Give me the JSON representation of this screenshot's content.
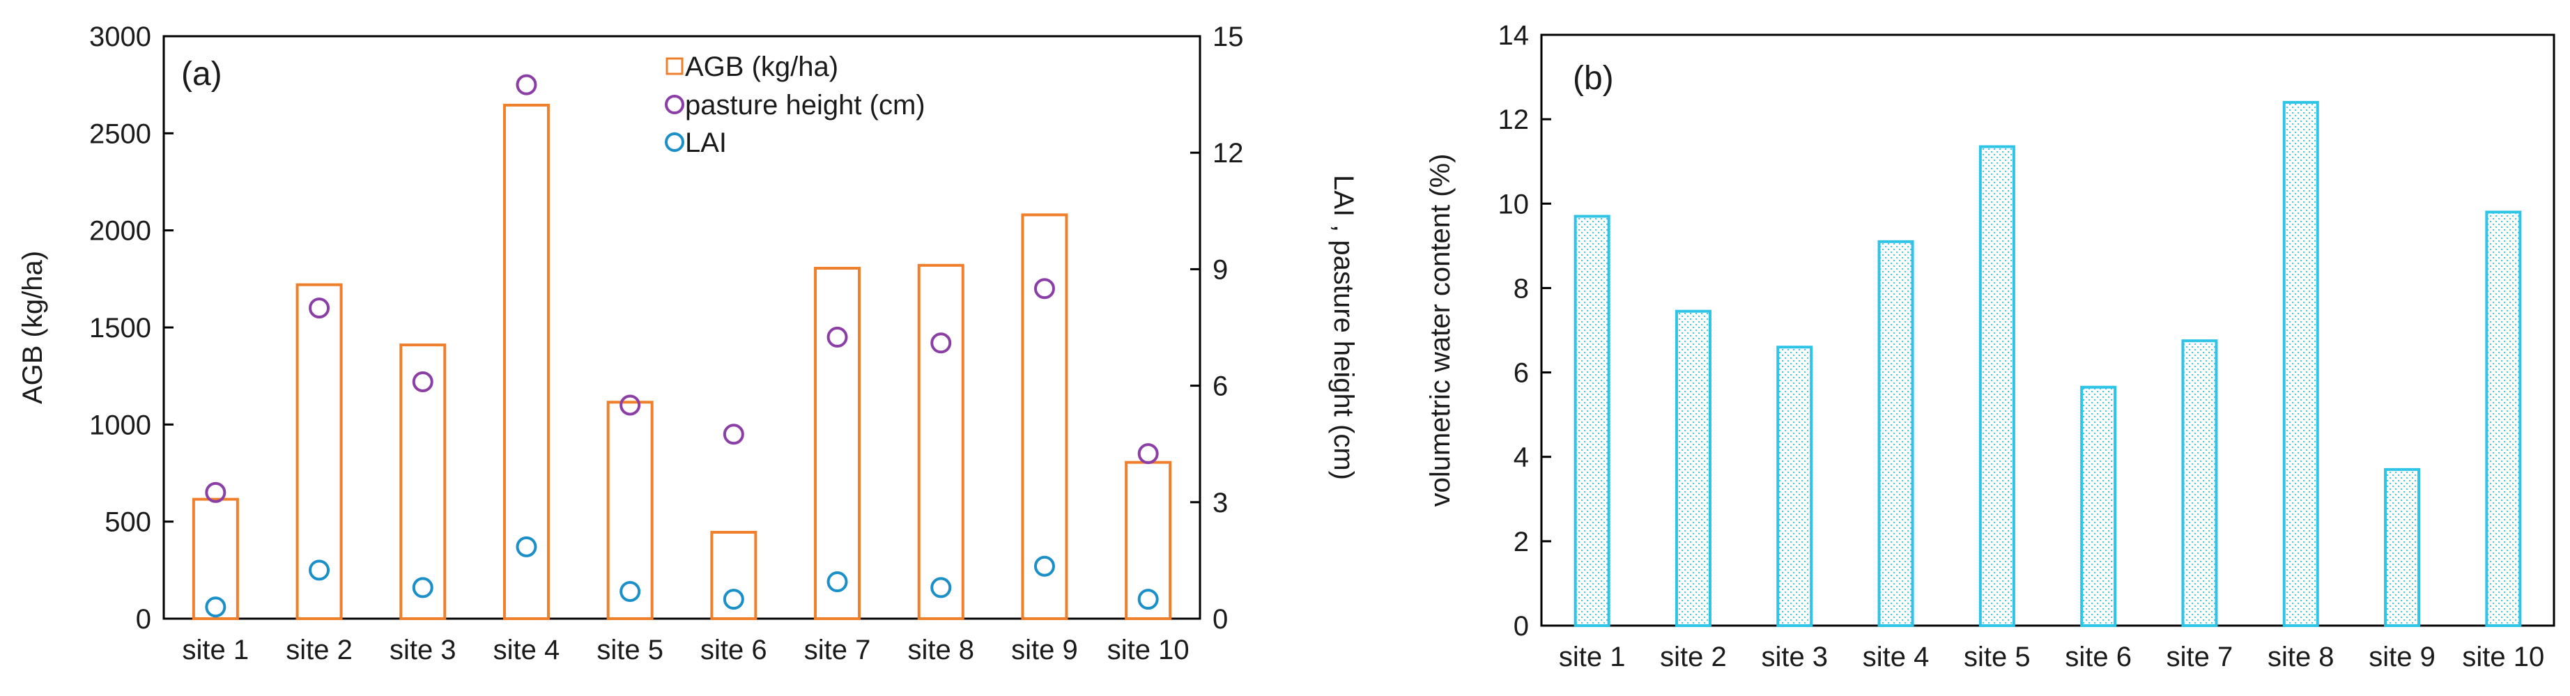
{
  "chart_data": [
    {
      "type": "bar",
      "panel_label": "(a)",
      "categories": [
        "site 1",
        "site 2",
        "site 3",
        "site 4",
        "site 5",
        "site 6",
        "site 7",
        "site 8",
        "site 9",
        "site 10"
      ],
      "series": [
        {
          "name": "AGB (kg/ha)",
          "axis": "left",
          "kind": "bar",
          "color": "#F07F2B",
          "fill": "#ffffff",
          "values": [
            615,
            1720,
            1410,
            2645,
            1115,
            445,
            1805,
            1820,
            2080,
            805
          ]
        },
        {
          "name": "pasture height (cm)",
          "axis": "right",
          "kind": "scatter",
          "color": "#8B3FA6",
          "values": [
            3.25,
            8.0,
            6.1,
            13.75,
            5.5,
            4.75,
            7.25,
            7.1,
            8.5,
            4.25
          ]
        },
        {
          "name": "LAI",
          "axis": "right",
          "kind": "scatter",
          "color": "#1B8FC8",
          "values": [
            0.3,
            1.25,
            0.8,
            1.85,
            0.7,
            0.5,
            0.95,
            0.8,
            1.35,
            0.5
          ]
        }
      ],
      "ylabel": "AGB (kg/ha)",
      "y2label": "LAI , pasture height (cm)",
      "ylim": [
        0,
        3000
      ],
      "yticks": [
        0,
        500,
        1000,
        1500,
        2000,
        2500,
        3000
      ],
      "y2lim": [
        0,
        15
      ],
      "y2ticks": [
        0,
        3,
        6,
        9,
        12,
        15
      ],
      "legend": "top-center",
      "grid": false
    },
    {
      "type": "bar",
      "panel_label": "(b)",
      "categories": [
        "site 1",
        "site 2",
        "site 3",
        "site 4",
        "site 5",
        "site 6",
        "site 7",
        "site 8",
        "site 9",
        "site 10"
      ],
      "series": [
        {
          "name": "volumetric water content (%)",
          "kind": "bar",
          "color": "#2EC4E6",
          "values": [
            9.7,
            7.45,
            6.6,
            9.1,
            11.35,
            5.65,
            6.75,
            12.4,
            3.7,
            9.8
          ]
        }
      ],
      "ylabel": "volumetric water content (%)",
      "ylim": [
        0,
        14
      ],
      "yticks": [
        0,
        2,
        4,
        6,
        8,
        10,
        12,
        14
      ],
      "grid": false
    }
  ]
}
